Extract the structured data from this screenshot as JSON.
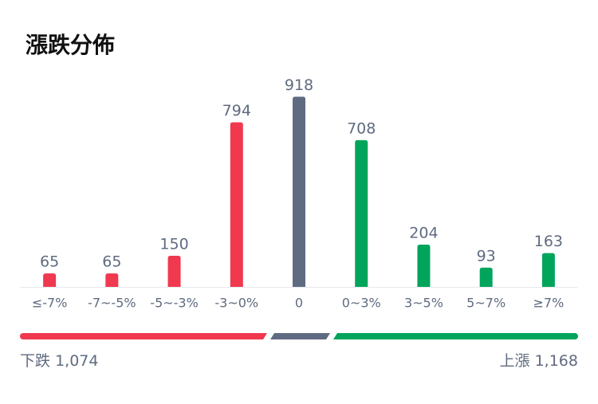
{
  "chart_data": {
    "type": "bar",
    "title": "漲跌分佈",
    "categories": [
      "≤-7%",
      "-7~-5%",
      "-5~-3%",
      "-3~0%",
      "0",
      "0~3%",
      "3~5%",
      "5~7%",
      "≥7%"
    ],
    "values": [
      65,
      65,
      150,
      794,
      918,
      708,
      204,
      93,
      163
    ],
    "colors": [
      "#f0384f",
      "#f0384f",
      "#f0384f",
      "#f0384f",
      "#5f6b80",
      "#00a55b",
      "#00a55b",
      "#00a55b",
      "#00a55b"
    ],
    "ylim": [
      0,
      1000
    ]
  },
  "summary": {
    "down_label": "下跌",
    "down_total": "1,074",
    "up_label": "上漲",
    "up_total": "1,168"
  }
}
